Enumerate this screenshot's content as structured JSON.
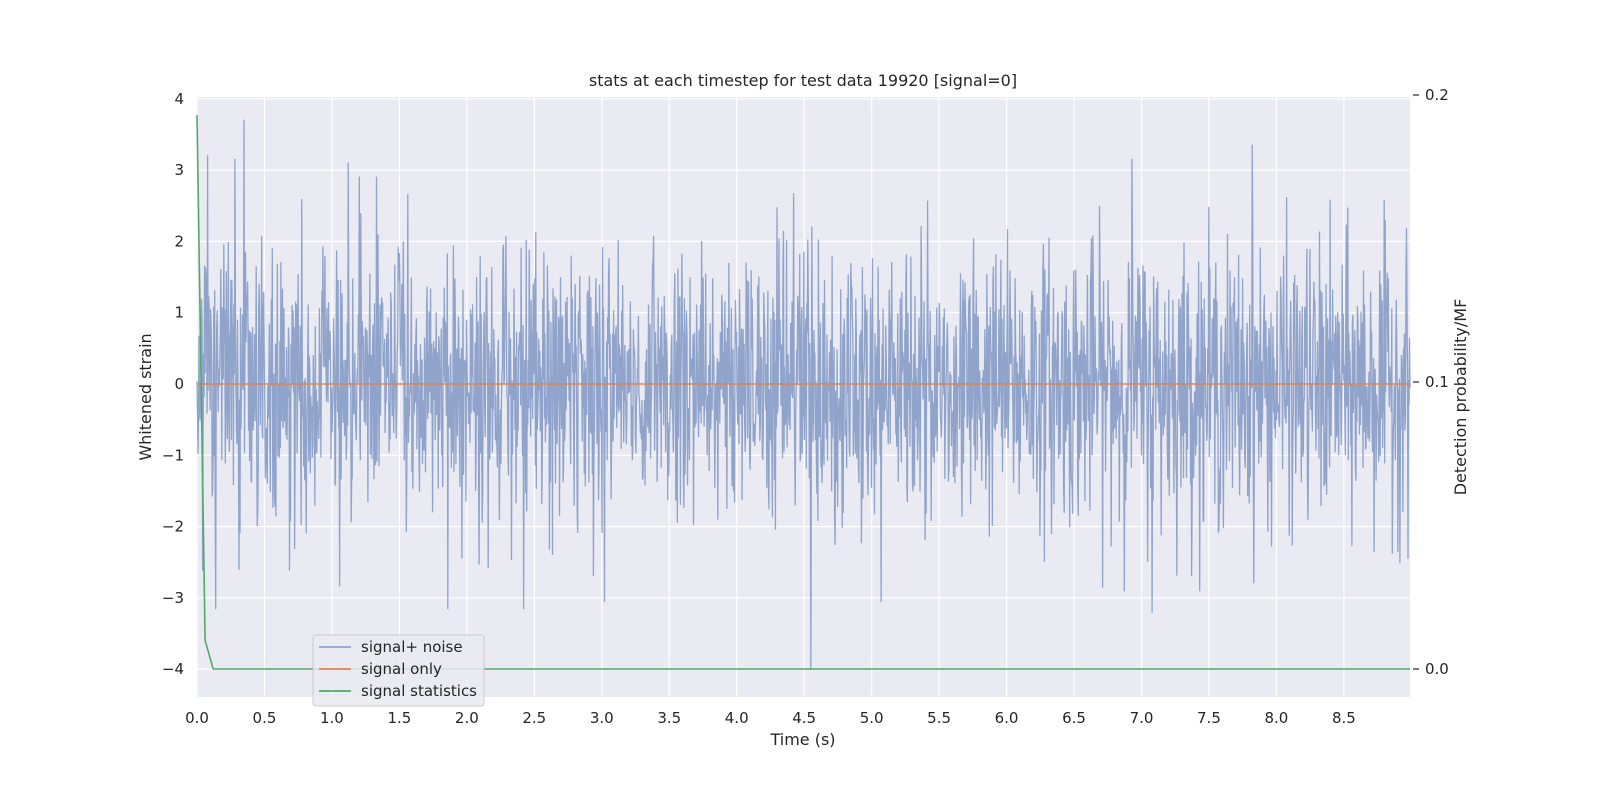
{
  "chart_data": {
    "type": "line",
    "title": "stats at each timestep for test data 19920 [signal=0]",
    "xlabel": "Time (s)",
    "ylabel": "Whitened strain",
    "y2label": "Detection probability/MF",
    "xlim": [
      0.0,
      8.99
    ],
    "ylim": [
      -4.0,
      4.0
    ],
    "y2lim": [
      0.0,
      0.2
    ],
    "x_ticks": [
      0.0,
      0.5,
      1.0,
      1.5,
      2.0,
      2.5,
      3.0,
      3.5,
      4.0,
      4.5,
      5.0,
      5.5,
      6.0,
      6.5,
      7.0,
      7.5,
      8.0,
      8.5
    ],
    "x_tick_labels": [
      "0.0",
      "0.5",
      "1.0",
      "1.5",
      "2.0",
      "2.5",
      "3.0",
      "3.5",
      "4.0",
      "4.5",
      "5.0",
      "5.5",
      "6.0",
      "6.5",
      "7.0",
      "7.5",
      "8.0",
      "8.5"
    ],
    "y_ticks": [
      4,
      3,
      2,
      1,
      0,
      -1,
      -2,
      -3,
      -4
    ],
    "y_tick_labels": [
      "4",
      "3",
      "2",
      "1",
      "0",
      "−1",
      "−2",
      "−3",
      "−4"
    ],
    "y2_ticks": [
      0.2,
      0.1,
      0.0
    ],
    "y2_tick_labels": [
      "0.2",
      "0.1",
      "0.0"
    ],
    "grid": true,
    "legend_position": "lower-left",
    "background": "#eaeaf2",
    "series": [
      {
        "name": "signal+ noise",
        "color": "#8fa3cb",
        "axis": "left",
        "noise_description": "dense whitened-strain noise, approx. 2400 samples over 0 to 8.99 s",
        "typical_abs_peak": 2.3,
        "peaks": [
          {
            "x": 0.35,
            "y": 3.7
          },
          {
            "x": 0.28,
            "y": 3.15
          },
          {
            "x": 1.12,
            "y": 3.1
          },
          {
            "x": 6.93,
            "y": 3.15
          },
          {
            "x": 7.82,
            "y": 3.35
          },
          {
            "x": 0.08,
            "y": 3.2
          },
          {
            "x": 4.55,
            "y": -4.0
          },
          {
            "x": 7.08,
            "y": -3.2
          },
          {
            "x": 1.86,
            "y": -3.15
          },
          {
            "x": 0.14,
            "y": -3.15
          },
          {
            "x": 2.42,
            "y": -3.15
          },
          {
            "x": 5.07,
            "y": -3.05
          },
          {
            "x": 3.02,
            "y": -3.05
          }
        ]
      },
      {
        "name": "signal only",
        "color": "#dd8452",
        "axis": "left",
        "x": [
          0.0,
          8.99
        ],
        "y": [
          0.0,
          0.0
        ]
      },
      {
        "name": "signal statistics",
        "color": "#55a868",
        "axis": "right",
        "x": [
          0.0,
          0.06,
          0.12,
          0.5,
          1.0,
          2.0,
          3.0,
          4.0,
          5.0,
          6.0,
          7.0,
          8.0,
          8.99
        ],
        "y": [
          0.193,
          0.01,
          0.0,
          0.0,
          0.0,
          0.0,
          0.0,
          0.0,
          0.0,
          0.0,
          0.0,
          0.0,
          0.0
        ]
      }
    ]
  }
}
